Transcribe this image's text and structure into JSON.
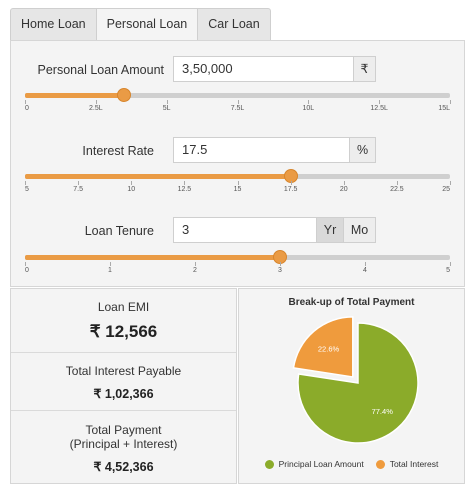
{
  "tabs": [
    {
      "label": "Home Loan",
      "active": false
    },
    {
      "label": "Personal Loan",
      "active": true
    },
    {
      "label": "Car Loan",
      "active": false
    }
  ],
  "amount": {
    "label": "Personal Loan Amount",
    "value": "3,50,000",
    "unit": "₹",
    "slider_fraction": 0.2333,
    "ticks": [
      "0",
      "2.5L",
      "5L",
      "7.5L",
      "10L",
      "12.5L",
      "15L"
    ]
  },
  "rate": {
    "label": "Interest Rate",
    "value": "17.5",
    "unit": "%",
    "slider_fraction": 0.625,
    "ticks": [
      "5",
      "7.5",
      "10",
      "12.5",
      "15",
      "17.5",
      "20",
      "22.5",
      "25"
    ]
  },
  "tenure": {
    "label": "Loan Tenure",
    "value": "3",
    "unit_year": "Yr",
    "unit_month": "Mo",
    "slider_fraction": 0.6,
    "ticks": [
      "0",
      "1",
      "2",
      "3",
      "4",
      "5"
    ]
  },
  "results": {
    "emi_label": "Loan EMI",
    "emi_value": "₹ 12,566",
    "interest_label": "Total Interest Payable",
    "interest_value": "₹ 1,02,366",
    "total_label_1": "Total Payment",
    "total_label_2": "(Principal + Interest)",
    "total_value": "₹ 4,52,366"
  },
  "chart_data": {
    "type": "pie",
    "title": "Break-up of Total Payment",
    "slices": [
      {
        "name": "Principal Loan Amount",
        "value": 77.4,
        "label": "77.4%",
        "color": "#8bab2a"
      },
      {
        "name": "Total Interest",
        "value": 22.6,
        "label": "22.6%",
        "color": "#ef9b3d"
      }
    ]
  }
}
